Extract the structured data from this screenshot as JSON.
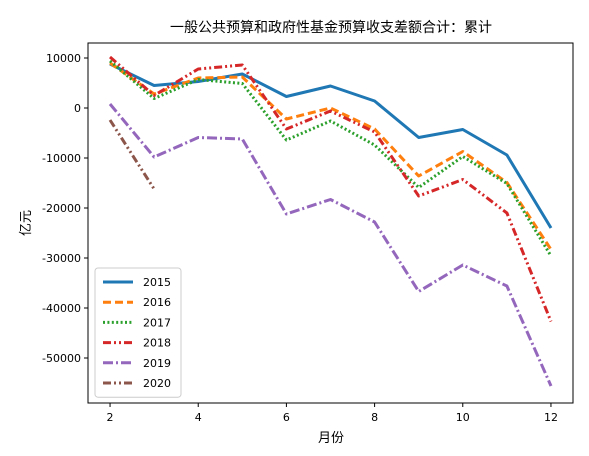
{
  "chart_data": {
    "type": "line",
    "title": "一般公共预算和政府性基金预算收支差额合计：累计",
    "xlabel": "月份",
    "ylabel": "亿元",
    "xlim": [
      1.5,
      12.5
    ],
    "ylim": [
      -59000,
      13000
    ],
    "xticks": [
      2,
      4,
      6,
      8,
      10,
      12
    ],
    "yticks": [
      10000,
      0,
      -10000,
      -20000,
      -30000,
      -40000,
      -50000
    ],
    "grid": false,
    "legend_position": "lower-left",
    "series": [
      {
        "name": "2015",
        "color": "#1f77b4",
        "style": "solid",
        "x": [
          2,
          3,
          4,
          5,
          6,
          7,
          8,
          9,
          10,
          11,
          12
        ],
        "y": [
          8800,
          4500,
          5300,
          6800,
          2300,
          4400,
          1400,
          -5900,
          -4300,
          -9400,
          -24000
        ]
      },
      {
        "name": "2016",
        "color": "#ff7f0e",
        "style": "dashed",
        "x": [
          2,
          3,
          4,
          5,
          6,
          7,
          8,
          9,
          10,
          11,
          12
        ],
        "y": [
          9000,
          2800,
          6000,
          6200,
          -2200,
          0,
          -4200,
          -13600,
          -8700,
          -14900,
          -28300
        ]
      },
      {
        "name": "2017",
        "color": "#2ca02c",
        "style": "dotted",
        "x": [
          2,
          3,
          4,
          5,
          6,
          7,
          8,
          9,
          10,
          11,
          12
        ],
        "y": [
          9400,
          1900,
          5700,
          4900,
          -6400,
          -2600,
          -7400,
          -15900,
          -9700,
          -15100,
          -29600
        ]
      },
      {
        "name": "2018",
        "color": "#d62728",
        "style": "dashdotdot",
        "x": [
          2,
          3,
          4,
          5,
          6,
          7,
          8,
          9,
          10,
          11,
          12
        ],
        "y": [
          10200,
          2500,
          7800,
          8600,
          -4200,
          -600,
          -4800,
          -17600,
          -14300,
          -21000,
          -42700
        ]
      },
      {
        "name": "2019",
        "color": "#9467bd",
        "style": "dashdot",
        "x": [
          2,
          3,
          4,
          5,
          6,
          7,
          8,
          9,
          10,
          11,
          12
        ],
        "y": [
          800,
          -9800,
          -5900,
          -6200,
          -21200,
          -18300,
          -22800,
          -36700,
          -31400,
          -35600,
          -55600
        ]
      },
      {
        "name": "2020",
        "color": "#8c564b",
        "style": "dashdotdot",
        "x": [
          2,
          3
        ],
        "y": [
          -2400,
          -16200
        ]
      }
    ]
  }
}
